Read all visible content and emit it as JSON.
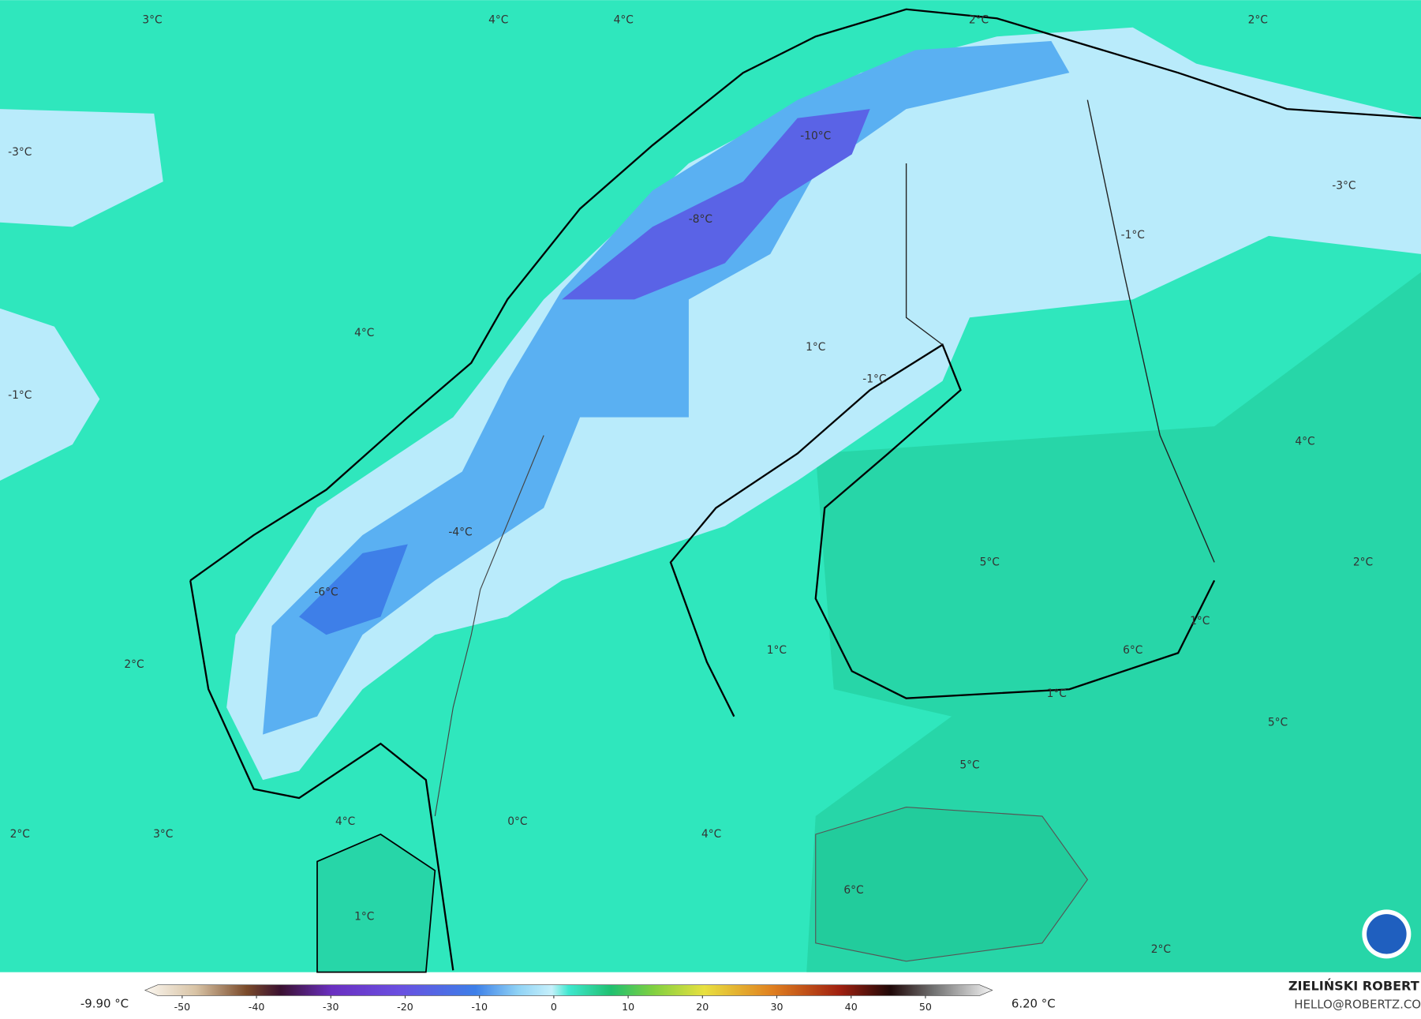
{
  "map": {
    "labels": [
      "3°C",
      "4°C",
      "4°C",
      "2°C",
      "2°C",
      "-3°C",
      "-10°C",
      "-8°C",
      "-3°C",
      "-1°C",
      "4°C",
      "1°C",
      "-1°C",
      "-1°C",
      "4°C",
      "-4°C",
      "5°C",
      "2°C",
      "-6°C",
      "1°C",
      "1°C",
      "6°C",
      "2°C",
      "1°C",
      "5°C",
      "5°C",
      "2°C",
      "3°C",
      "4°C",
      "0°C",
      "4°C",
      "6°C",
      "1°C",
      "2°C"
    ]
  },
  "colorbar": {
    "lim": [
      -55,
      59
    ],
    "ticks": [
      -50,
      -40,
      -30,
      -20,
      -10,
      0,
      10,
      20,
      30,
      40,
      50
    ],
    "min_label": "-9.90 °C",
    "max_label": "6.20 °C"
  },
  "credit": {
    "name": "ZIELIŃSKI ROBERT",
    "email": "HELLO@ROBERTZ.CO"
  }
}
